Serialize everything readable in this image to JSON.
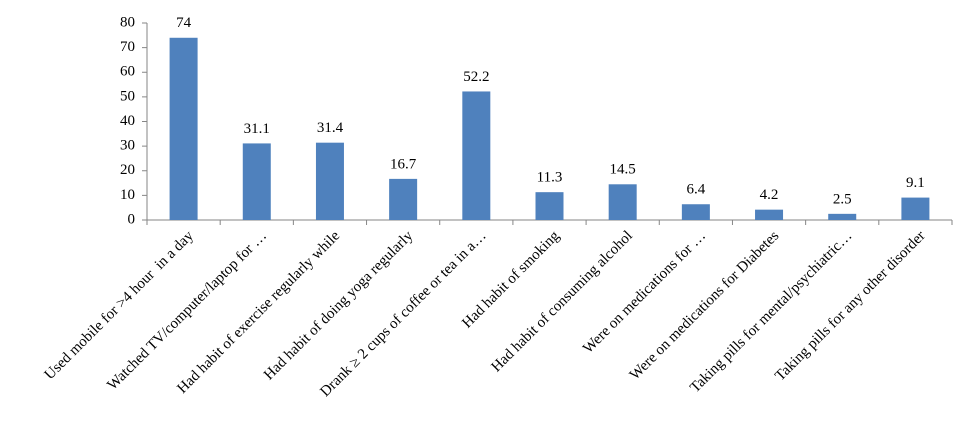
{
  "chart_data": {
    "type": "bar",
    "categories": [
      "Used mobile for >4 hour  in a day",
      "Watched TV/computer/laptop for …",
      "Had habit of exercise regularly while",
      "Had habit of doing yoga regularly",
      "Drank ≥ 2 cups of coffee or tea in a…",
      "Had habit of smoking",
      "Had habit of consuming alcohol",
      "Were on medications for …",
      "Were on medications for Diabetes",
      "Taking pills for mental/psychiatric…",
      "Taking pills for any other disorder"
    ],
    "values": [
      74,
      31.1,
      31.4,
      16.7,
      52.2,
      11.3,
      14.5,
      6.4,
      4.2,
      2.5,
      9.1
    ],
    "color": "#4f81bd",
    "ylim": [
      0,
      80
    ],
    "yticks": [
      0,
      10,
      20,
      30,
      40,
      50,
      60,
      70,
      80
    ],
    "grid": false
  }
}
